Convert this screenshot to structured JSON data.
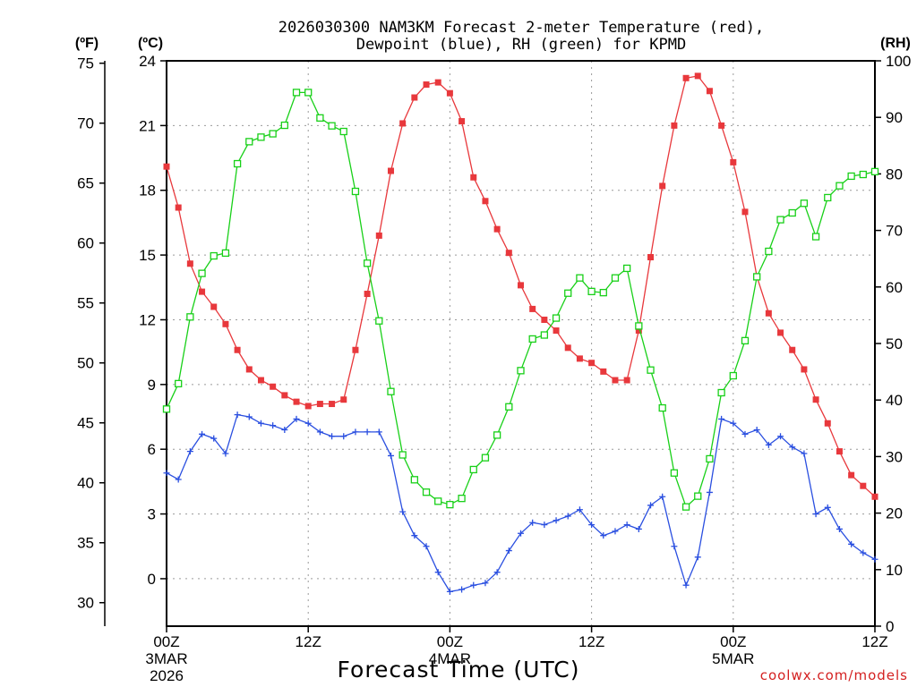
{
  "chart_data": {
    "type": "line",
    "title_line1": "2026030300 NAM3KM Forecast 2-meter Temperature (red),",
    "title_line2": "Dewpoint (blue), RH (green) for KPMD",
    "xlabel": "Forecast Time (UTC)",
    "credit": "coolwx.com/models",
    "units": {
      "f": "(ºF)",
      "c": "(ºC)",
      "rh": "(RH)"
    },
    "x_range_hours": [
      0,
      60
    ],
    "x_ticks": [
      {
        "hour": 0,
        "label": "00Z",
        "date": "3MAR",
        "year": "2026"
      },
      {
        "hour": 12,
        "label": "12Z",
        "date": "",
        "year": ""
      },
      {
        "hour": 24,
        "label": "00Z",
        "date": "4MAR",
        "year": ""
      },
      {
        "hour": 36,
        "label": "12Z",
        "date": "",
        "year": ""
      },
      {
        "hour": 48,
        "label": "00Z",
        "date": "5MAR",
        "year": ""
      },
      {
        "hour": 60,
        "label": "12Z",
        "date": "",
        "year": ""
      }
    ],
    "yaxis_c": {
      "range": [
        -2.2,
        24
      ],
      "ticks": [
        0,
        3,
        6,
        9,
        12,
        15,
        18,
        21,
        24
      ]
    },
    "yaxis_f": {
      "range": [
        28.04,
        75.2
      ],
      "ticks": [
        30,
        35,
        40,
        45,
        50,
        55,
        60,
        65,
        70,
        75
      ]
    },
    "yaxis_rh": {
      "range": [
        0,
        100
      ],
      "ticks": [
        0,
        10,
        20,
        30,
        40,
        50,
        60,
        70,
        80,
        90,
        100
      ]
    },
    "hours": [
      0,
      1,
      2,
      3,
      4,
      5,
      6,
      7,
      8,
      9,
      10,
      11,
      12,
      13,
      14,
      15,
      16,
      17,
      18,
      19,
      20,
      21,
      22,
      23,
      24,
      25,
      26,
      27,
      28,
      29,
      30,
      31,
      32,
      33,
      34,
      35,
      36,
      37,
      38,
      39,
      40,
      41,
      42,
      43,
      44,
      45,
      46,
      47,
      48,
      49,
      50,
      51,
      52,
      53,
      54,
      55,
      56,
      57,
      58,
      59,
      60
    ],
    "series": [
      {
        "name": "Temperature",
        "color": "#e8383c",
        "marker": "filled-square",
        "axis": "c",
        "values": [
          19.1,
          17.2,
          14.6,
          13.3,
          12.6,
          11.8,
          10.6,
          9.7,
          9.2,
          8.9,
          8.5,
          8.2,
          8.0,
          8.1,
          8.1,
          8.3,
          10.6,
          13.2,
          15.9,
          18.9,
          21.1,
          22.3,
          22.9,
          23.0,
          22.5,
          21.2,
          18.6,
          17.5,
          16.2,
          15.1,
          13.6,
          12.5,
          12.0,
          11.5,
          10.7,
          10.2,
          10.0,
          9.6,
          9.2,
          9.2,
          11.5,
          14.9,
          18.2,
          21.0,
          23.2,
          23.3,
          22.6,
          21.0,
          19.3,
          17.0,
          14.0,
          12.3,
          11.4,
          10.6,
          9.7,
          8.3,
          7.2,
          5.9,
          4.8,
          4.3,
          3.8
        ]
      },
      {
        "name": "Dewpoint",
        "color": "#2a4fe0",
        "marker": "plus",
        "axis": "c",
        "values": [
          4.9,
          4.6,
          5.9,
          6.7,
          6.5,
          5.8,
          7.6,
          7.5,
          7.2,
          7.1,
          6.9,
          7.4,
          7.2,
          6.8,
          6.6,
          6.6,
          6.8,
          6.8,
          6.8,
          5.7,
          3.1,
          2.0,
          1.5,
          0.3,
          -0.6,
          -0.5,
          -0.3,
          -0.2,
          0.3,
          1.3,
          2.1,
          2.6,
          2.5,
          2.7,
          2.9,
          3.2,
          2.5,
          2.0,
          2.2,
          2.5,
          2.3,
          3.4,
          3.8,
          1.5,
          -0.3,
          1.0,
          4.0,
          7.4,
          7.2,
          6.7,
          6.9,
          6.2,
          6.6,
          6.1,
          5.8,
          3.0,
          3.3,
          2.3,
          1.6,
          1.2,
          0.9
        ]
      },
      {
        "name": "RH",
        "color": "#18d018",
        "marker": "open-square",
        "axis": "rh",
        "values": [
          38.4,
          42.9,
          54.7,
          62.4,
          65.5,
          66.0,
          81.8,
          85.7,
          86.5,
          87.1,
          88.6,
          94.4,
          94.4,
          89.9,
          88.5,
          87.5,
          76.9,
          64.2,
          54.0,
          41.5,
          30.3,
          25.9,
          23.7,
          22.1,
          21.5,
          22.6,
          27.7,
          29.8,
          33.8,
          38.8,
          45.2,
          50.8,
          51.5,
          54.5,
          58.9,
          61.6,
          59.2,
          59.0,
          61.6,
          63.3,
          53.1,
          45.3,
          38.6,
          27.1,
          21.1,
          23.0,
          29.6,
          41.3,
          44.3,
          50.5,
          61.8,
          66.3,
          71.9,
          73.1,
          74.8,
          68.9,
          75.8,
          77.9,
          79.6,
          79.9,
          80.4
        ]
      }
    ]
  }
}
